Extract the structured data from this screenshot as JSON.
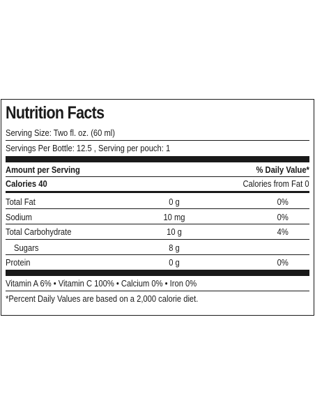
{
  "title": "Nutrition Facts",
  "serving_size": "Serving Size: Two fl. oz. (60 ml)",
  "servings_per": "Servings Per Bottle: 12.5 , Serving per pouch: 1",
  "amount_header": "Amount per Serving",
  "dv_header": "% Daily Value*",
  "calories": "Calories 40",
  "calories_from_fat": "Calories from Fat 0",
  "nutrients": [
    {
      "name": "Total Fat",
      "amount": "0 g",
      "dv": "0%"
    },
    {
      "name": "Sodium",
      "amount": "10 mg",
      "dv": "0%"
    },
    {
      "name": "Total Carbohydrate",
      "amount": "10 g",
      "dv": "4%"
    },
    {
      "name": "Sugars",
      "amount": "8 g",
      "dv": ""
    },
    {
      "name": "Protein",
      "amount": "0 g",
      "dv": "0%"
    }
  ],
  "vitamins": "Vitamin A 6% • Vitamin C 100% • Calcium 0% • Iron 0%",
  "footnote": "*Percent Daily Values are based on a 2,000 calorie diet."
}
